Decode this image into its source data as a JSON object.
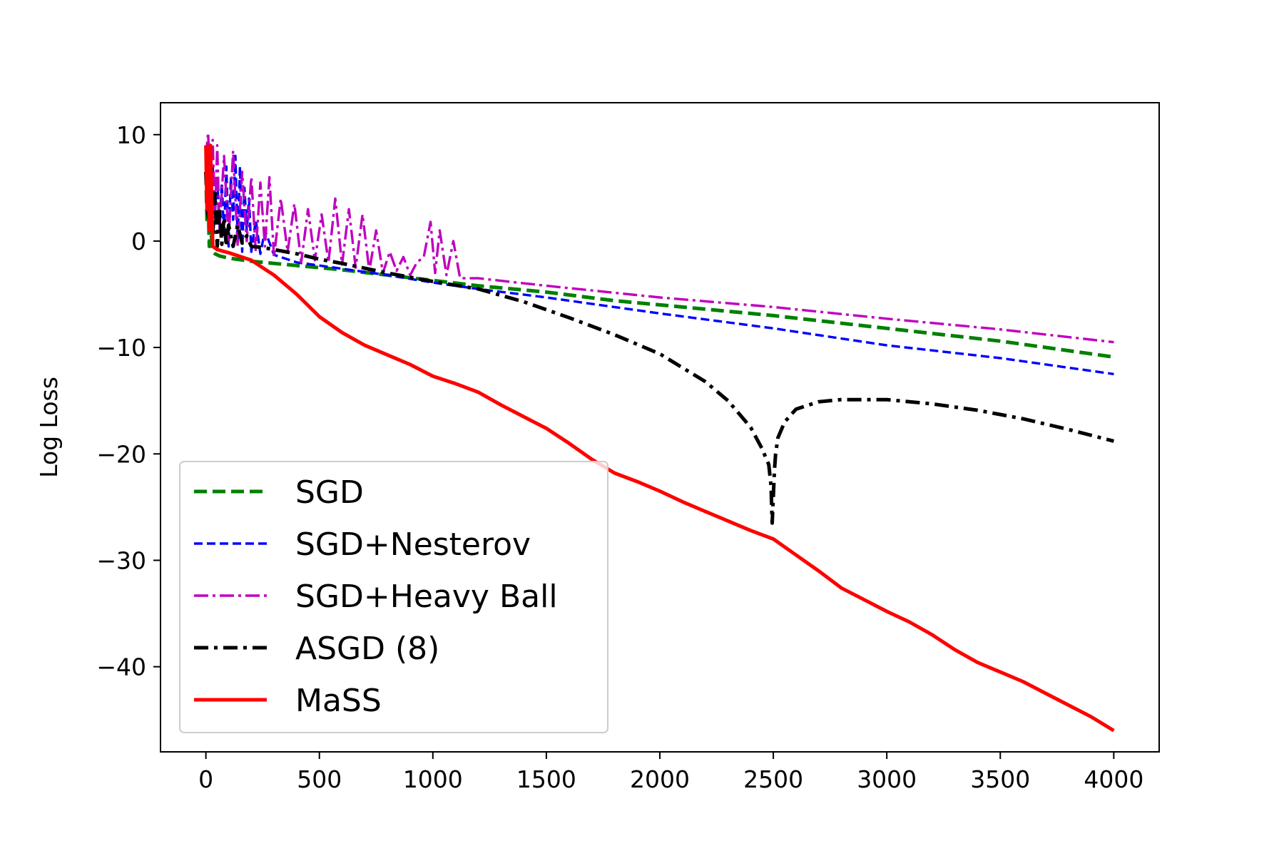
{
  "chart_data": {
    "type": "line",
    "title": "",
    "xlabel": "",
    "ylabel": "Log Loss",
    "xlim": [
      -200,
      4200
    ],
    "ylim": [
      -48,
      13
    ],
    "xticks": [
      0,
      500,
      1000,
      1500,
      2000,
      2500,
      3000,
      3500,
      4000
    ],
    "xtick_labels": [
      "0",
      "500",
      "1000",
      "1500",
      "2000",
      "2500",
      "3000",
      "3500",
      "4000"
    ],
    "yticks": [
      10,
      0,
      -10,
      -20,
      -30,
      -40
    ],
    "ytick_labels": [
      "10",
      "0",
      "−10",
      "−20",
      "−30",
      "−40"
    ],
    "grid": false,
    "legend_position": "lower-left",
    "series": [
      {
        "name": "SGD",
        "color": "#008000",
        "style": "dashed",
        "x": [
          0,
          5,
          10,
          15,
          20,
          30,
          40,
          60,
          100,
          200,
          400,
          600,
          800,
          1000,
          1200,
          1500,
          1800,
          2000,
          2500,
          3000,
          3500,
          4000
        ],
        "y": [
          6.5,
          2,
          4,
          -0.5,
          1.5,
          -1,
          -1.2,
          -1.4,
          -1.6,
          -1.9,
          -2.3,
          -2.7,
          -3.2,
          -3.7,
          -4.2,
          -4.8,
          -5.6,
          -6.0,
          -7.0,
          -8.2,
          -9.4,
          -10.9
        ]
      },
      {
        "name": "SGD+Nesterov",
        "color": "#0000ff",
        "style": "dashed",
        "x": [
          0,
          10,
          20,
          30,
          40,
          50,
          60,
          70,
          80,
          90,
          100,
          110,
          120,
          130,
          140,
          150,
          160,
          170,
          180,
          190,
          200,
          220,
          240,
          260,
          300,
          400,
          600,
          800,
          1000,
          1200,
          1500,
          2000,
          2500,
          3000,
          3500,
          4000
        ],
        "y": [
          6,
          9,
          4,
          7,
          3,
          6,
          1,
          5.5,
          0.5,
          7,
          -0.5,
          6,
          2,
          8,
          0,
          7,
          -1,
          5,
          1,
          4,
          -1,
          2,
          -1.2,
          1,
          -1.3,
          -2,
          -2.6,
          -3.2,
          -3.9,
          -4.5,
          -5.3,
          -6.8,
          -8.2,
          -9.8,
          -11,
          -12.5
        ]
      },
      {
        "name": "SGD+Heavy Ball",
        "color": "#bf00bf",
        "style": "dashdot",
        "x": [
          0,
          10,
          20,
          30,
          40,
          50,
          60,
          80,
          100,
          120,
          140,
          160,
          180,
          200,
          220,
          240,
          260,
          280,
          300,
          330,
          360,
          390,
          420,
          450,
          480,
          510,
          540,
          570,
          600,
          630,
          660,
          690,
          720,
          750,
          780,
          810,
          840,
          870,
          900,
          930,
          960,
          990,
          1010,
          1030,
          1060,
          1090,
          1120,
          1200,
          1500,
          2000,
          2500,
          3000,
          3500,
          4000
        ],
        "y": [
          8,
          10.2,
          4,
          9.5,
          2,
          9,
          1,
          8,
          0,
          8.5,
          -0.5,
          6.5,
          0,
          6,
          -1,
          5.5,
          -0.5,
          6,
          -1.5,
          4,
          -1,
          3.5,
          -2,
          3,
          -1.8,
          2.5,
          -2,
          4,
          -2.2,
          3,
          -2.5,
          2.5,
          -2.8,
          1,
          -3,
          -1,
          -2.8,
          -1.5,
          -3.2,
          -2,
          -1.5,
          1.8,
          -3,
          1,
          -3.2,
          0,
          -3.5,
          -3.5,
          -4.2,
          -5.3,
          -6.2,
          -7.3,
          -8.3,
          -9.5
        ]
      },
      {
        "name": "ASGD (8)",
        "color": "#000000",
        "style": "dashdot",
        "x": [
          0,
          10,
          20,
          30,
          40,
          50,
          60,
          70,
          80,
          90,
          100,
          120,
          140,
          160,
          180,
          200,
          250,
          300,
          400,
          500,
          600,
          800,
          1000,
          1200,
          1400,
          1600,
          1800,
          2000,
          2200,
          2300,
          2400,
          2450,
          2480,
          2490,
          2495,
          2500,
          2505,
          2510,
          2520,
          2550,
          2600,
          2700,
          2800,
          3000,
          3200,
          3400,
          3600,
          3800,
          4000
        ],
        "y": [
          6.5,
          2,
          5.8,
          0.5,
          4.5,
          -0.5,
          3,
          -0.3,
          2.2,
          -0.5,
          1.5,
          -0.5,
          1.5,
          -0.2,
          0.5,
          -0.5,
          -0.6,
          -0.8,
          -1.2,
          -1.7,
          -2.1,
          -3,
          -3.8,
          -4.5,
          -5.7,
          -7.2,
          -8.8,
          -10.6,
          -13.2,
          -15.0,
          -17.5,
          -19.5,
          -21,
          -23,
          -26.5,
          -24,
          -21.5,
          -20,
          -18.5,
          -17,
          -15.8,
          -15.1,
          -14.9,
          -14.9,
          -15.3,
          -15.9,
          -16.7,
          -17.7,
          -18.8
        ]
      },
      {
        "name": "MaSS",
        "color": "#ff0000",
        "style": "solid",
        "x": [
          0,
          5,
          10,
          15,
          20,
          30,
          50,
          100,
          200,
          300,
          400,
          500,
          600,
          700,
          800,
          900,
          1000,
          1100,
          1200,
          1300,
          1400,
          1500,
          1600,
          1700,
          1800,
          1900,
          2000,
          2100,
          2200,
          2300,
          2400,
          2500,
          2600,
          2700,
          2800,
          2900,
          3000,
          3100,
          3200,
          3300,
          3400,
          3500,
          3600,
          3700,
          3800,
          3900,
          4000
        ],
        "y": [
          9,
          3,
          8.8,
          1,
          9,
          -0.5,
          -0.8,
          -1.1,
          -1.8,
          -3.2,
          -5.0,
          -7.1,
          -8.6,
          -9.8,
          -10.7,
          -11.6,
          -12.7,
          -13.4,
          -14.2,
          -15.4,
          -16.5,
          -17.6,
          -19.0,
          -20.5,
          -21.8,
          -22.6,
          -23.5,
          -24.5,
          -25.4,
          -26.3,
          -27.2,
          -28.0,
          -29.5,
          -31.0,
          -32.6,
          -33.7,
          -34.8,
          -35.8,
          -37.0,
          -38.4,
          -39.6,
          -40.5,
          -41.4,
          -42.5,
          -43.6,
          -44.7,
          -46.0
        ]
      }
    ]
  }
}
